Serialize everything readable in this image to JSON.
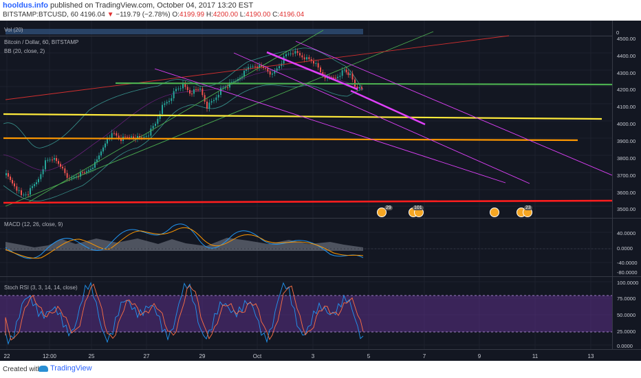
{
  "header": {
    "author": "hooldus.info",
    "published_text": "published on TradingView.com, October 04, 2017 13:20 EST",
    "symbol": "BITSTAMP:BTCUSD, 60",
    "last": "4196.04",
    "change_arrow": "▼",
    "change": "−119.79 (−2.78%)",
    "open_label": "O:",
    "open": "4199.99",
    "high_label": "H:",
    "high": "4200.00",
    "low_label": "L:",
    "low": "4190.00",
    "close_label": "C:",
    "close": "4196.04"
  },
  "panes": {
    "volume": {
      "label": "Vol (20)",
      "axis_label": "0"
    },
    "price": {
      "title": "Bitcoin / Dollar, 60, BITSTAMP",
      "indicator": "BB (20, close, 2)",
      "axis": [
        "4500.00",
        "4400.00",
        "4300.00",
        "4200.00",
        "4100.00",
        "4000.00",
        "3900.00",
        "3800.00",
        "3700.00",
        "3600.00",
        "3500.00"
      ],
      "event_badges": [
        "29",
        "101",
        "",
        "23"
      ]
    },
    "macd": {
      "label": "MACD (12, 26, close, 9)",
      "axis": [
        "40.0000",
        "0.0000",
        "-40.0000",
        "-80.0000"
      ]
    },
    "stoch": {
      "label": "Stoch RSI (3, 3, 14, 14, close)",
      "axis": [
        "100.0000",
        "75.0000",
        "50.0000",
        "25.0000",
        "0.0000"
      ]
    }
  },
  "time_axis": [
    "22",
    "12:00",
    "25",
    "27",
    "29",
    "Oct",
    "3",
    "5",
    "7",
    "9",
    "11",
    "13"
  ],
  "footer": {
    "created": "Created with",
    "brand": "TradingView"
  },
  "colors": {
    "background": "#131722",
    "up": "#26a69a",
    "down": "#ef5350",
    "support_red": "#ff1e1e",
    "level_yellow": "#ffeb3b",
    "level_orange": "#ff9800",
    "level_green": "#4caf50",
    "channel_magenta": "#e040fb",
    "bb": "#3ea8a0",
    "stoch_band": "#6a3d9a"
  }
}
